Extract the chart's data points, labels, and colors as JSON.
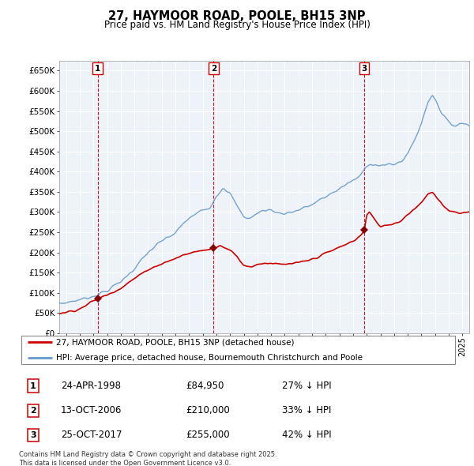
{
  "title": "27, HAYMOOR ROAD, POOLE, BH15 3NP",
  "subtitle": "Price paid vs. HM Land Registry's House Price Index (HPI)",
  "background_color": "#ffffff",
  "plot_bg_color": "#eef3fa",
  "grid_color": "#ffffff",
  "ylim": [
    0,
    675000
  ],
  "yticks": [
    0,
    50000,
    100000,
    150000,
    200000,
    250000,
    300000,
    350000,
    400000,
    450000,
    500000,
    550000,
    600000,
    650000
  ],
  "ytick_labels": [
    "£0",
    "£50K",
    "£100K",
    "£150K",
    "£200K",
    "£250K",
    "£300K",
    "£350K",
    "£400K",
    "£450K",
    "£500K",
    "£550K",
    "£600K",
    "£650K"
  ],
  "xlim_start": 1995.5,
  "xlim_end": 2025.5,
  "hpi_color": "#6699cc",
  "price_color": "#cc0000",
  "vline_color": "#cc0000",
  "marker_color": "#880000",
  "transaction1": {
    "date_num": 1998.31,
    "price": 84950,
    "label": "1"
  },
  "transaction2": {
    "date_num": 2006.79,
    "price": 210000,
    "label": "2"
  },
  "transaction3": {
    "date_num": 2017.82,
    "price": 255000,
    "label": "3"
  },
  "legend_house_label": "27, HAYMOOR ROAD, POOLE, BH15 3NP (detached house)",
  "legend_hpi_label": "HPI: Average price, detached house, Bournemouth Christchurch and Poole",
  "table_rows": [
    {
      "num": "1",
      "date": "24-APR-1998",
      "price": "£84,950",
      "hpi": "27% ↓ HPI"
    },
    {
      "num": "2",
      "date": "13-OCT-2006",
      "price": "£210,000",
      "hpi": "33% ↓ HPI"
    },
    {
      "num": "3",
      "date": "25-OCT-2017",
      "price": "£255,000",
      "hpi": "42% ↓ HPI"
    }
  ],
  "footer": "Contains HM Land Registry data © Crown copyright and database right 2025.\nThis data is licensed under the Open Government Licence v3.0."
}
